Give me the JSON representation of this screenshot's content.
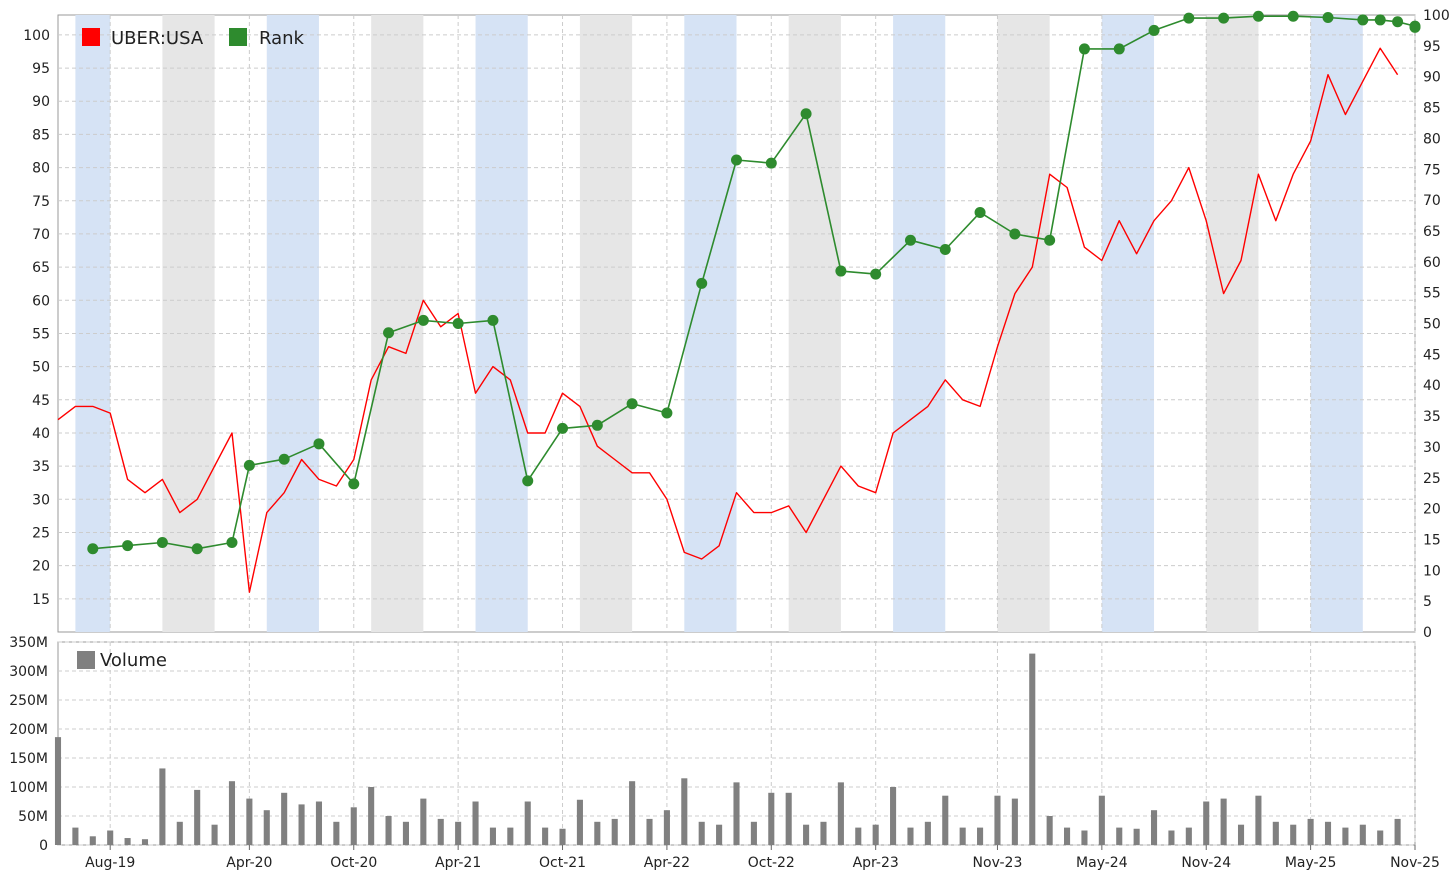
{
  "chart_data": [
    {
      "type": "line",
      "panel": "price",
      "legend": [
        {
          "name": "UBER:USA",
          "color": "#ff0000"
        },
        {
          "name": "Rank",
          "color": "#2e8b2e"
        }
      ],
      "x_tick_labels": [
        "Aug-19",
        "Apr-20",
        "Oct-20",
        "Apr-21",
        "Oct-21",
        "Apr-22",
        "Oct-22",
        "Apr-23",
        "Nov-23",
        "May-24",
        "Nov-24",
        "May-25",
        "Nov-25"
      ],
      "x_range": [
        "2019-05",
        "2025-11"
      ],
      "y_left_range": [
        10,
        103
      ],
      "y_left_ticks": [
        15,
        20,
        25,
        30,
        35,
        40,
        45,
        50,
        55,
        60,
        65,
        70,
        75,
        80,
        85,
        90,
        95,
        100
      ],
      "y_right_range": [
        0,
        100
      ],
      "y_right_ticks": [
        0,
        5,
        10,
        15,
        20,
        25,
        30,
        35,
        40,
        45,
        50,
        55,
        60,
        65,
        70,
        75,
        80,
        85,
        90,
        95,
        100
      ],
      "grid": true,
      "legend_position": "top-left",
      "bands": [
        {
          "start": "2019-06",
          "end": "2019-08",
          "color": "#d6e3f5"
        },
        {
          "start": "2019-11",
          "end": "2020-02",
          "color": "#e6e6e6"
        },
        {
          "start": "2020-05",
          "end": "2020-08",
          "color": "#d6e3f5"
        },
        {
          "start": "2020-11",
          "end": "2021-02",
          "color": "#e6e6e6"
        },
        {
          "start": "2021-05",
          "end": "2021-08",
          "color": "#d6e3f5"
        },
        {
          "start": "2021-11",
          "end": "2022-02",
          "color": "#e6e6e6"
        },
        {
          "start": "2022-05",
          "end": "2022-08",
          "color": "#d6e3f5"
        },
        {
          "start": "2022-11",
          "end": "2023-02",
          "color": "#e6e6e6"
        },
        {
          "start": "2023-05",
          "end": "2023-08",
          "color": "#d6e3f5"
        },
        {
          "start": "2023-11",
          "end": "2024-02",
          "color": "#e6e6e6"
        },
        {
          "start": "2024-05",
          "end": "2024-08",
          "color": "#d6e3f5"
        },
        {
          "start": "2024-11",
          "end": "2025-02",
          "color": "#e6e6e6"
        },
        {
          "start": "2025-05",
          "end": "2025-08",
          "color": "#d6e3f5"
        }
      ],
      "series": [
        {
          "name": "UBER:USA",
          "color": "#ff0000",
          "axis": "left",
          "points": [
            [
              "2019-05",
              42
            ],
            [
              "2019-06",
              44
            ],
            [
              "2019-07",
              44
            ],
            [
              "2019-08",
              43
            ],
            [
              "2019-09",
              33
            ],
            [
              "2019-10",
              31
            ],
            [
              "2019-11",
              33
            ],
            [
              "2019-12",
              28
            ],
            [
              "2020-01",
              30
            ],
            [
              "2020-02",
              35
            ],
            [
              "2020-03",
              40
            ],
            [
              "2020-04",
              16
            ],
            [
              "2020-05",
              28
            ],
            [
              "2020-06",
              31
            ],
            [
              "2020-07",
              36
            ],
            [
              "2020-08",
              33
            ],
            [
              "2020-09",
              32
            ],
            [
              "2020-10",
              36
            ],
            [
              "2020-11",
              48
            ],
            [
              "2020-12",
              53
            ],
            [
              "2021-01",
              52
            ],
            [
              "2021-02",
              60
            ],
            [
              "2021-03",
              56
            ],
            [
              "2021-04",
              58
            ],
            [
              "2021-05",
              46
            ],
            [
              "2021-06",
              50
            ],
            [
              "2021-07",
              48
            ],
            [
              "2021-08",
              40
            ],
            [
              "2021-09",
              40
            ],
            [
              "2021-10",
              46
            ],
            [
              "2021-11",
              44
            ],
            [
              "2021-12",
              38
            ],
            [
              "2022-01",
              36
            ],
            [
              "2022-02",
              34
            ],
            [
              "2022-03",
              34
            ],
            [
              "2022-04",
              30
            ],
            [
              "2022-05",
              22
            ],
            [
              "2022-06",
              21
            ],
            [
              "2022-07",
              23
            ],
            [
              "2022-08",
              31
            ],
            [
              "2022-09",
              28
            ],
            [
              "2022-10",
              28
            ],
            [
              "2022-11",
              29
            ],
            [
              "2022-12",
              25
            ],
            [
              "2023-01",
              30
            ],
            [
              "2023-02",
              35
            ],
            [
              "2023-03",
              32
            ],
            [
              "2023-04",
              31
            ],
            [
              "2023-05",
              40
            ],
            [
              "2023-06",
              42
            ],
            [
              "2023-07",
              44
            ],
            [
              "2023-08",
              48
            ],
            [
              "2023-09",
              45
            ],
            [
              "2023-10",
              44
            ],
            [
              "2023-11",
              53
            ],
            [
              "2023-12",
              61
            ],
            [
              "2024-01",
              65
            ],
            [
              "2024-02",
              79
            ],
            [
              "2024-03",
              77
            ],
            [
              "2024-04",
              68
            ],
            [
              "2024-05",
              66
            ],
            [
              "2024-06",
              72
            ],
            [
              "2024-07",
              67
            ],
            [
              "2024-08",
              72
            ],
            [
              "2024-09",
              75
            ],
            [
              "2024-10",
              80
            ],
            [
              "2024-11",
              72
            ],
            [
              "2024-12",
              61
            ],
            [
              "2025-01",
              66
            ],
            [
              "2025-02",
              79
            ],
            [
              "2025-03",
              72
            ],
            [
              "2025-04",
              79
            ],
            [
              "2025-05",
              84
            ],
            [
              "2025-06",
              94
            ],
            [
              "2025-07",
              88
            ],
            [
              "2025-08",
              93
            ],
            [
              "2025-09",
              98
            ],
            [
              "2025-10",
              94
            ]
          ]
        },
        {
          "name": "Rank",
          "color": "#2e8b2e",
          "axis": "right",
          "markers": true,
          "points": [
            [
              "2019-07",
              13.5
            ],
            [
              "2019-09",
              14
            ],
            [
              "2019-11",
              14.5
            ],
            [
              "2020-01",
              13.5
            ],
            [
              "2020-03",
              14.5
            ],
            [
              "2020-04",
              27
            ],
            [
              "2020-06",
              28
            ],
            [
              "2020-08",
              30.5
            ],
            [
              "2020-10",
              24
            ],
            [
              "2020-12",
              48.5
            ],
            [
              "2021-02",
              50.5
            ],
            [
              "2021-04",
              50
            ],
            [
              "2021-06",
              50.5
            ],
            [
              "2021-08",
              24.5
            ],
            [
              "2021-10",
              33
            ],
            [
              "2021-12",
              33.5
            ],
            [
              "2022-02",
              37
            ],
            [
              "2022-04",
              35.5
            ],
            [
              "2022-06",
              56.5
            ],
            [
              "2022-08",
              76.5
            ],
            [
              "2022-10",
              76
            ],
            [
              "2022-12",
              84
            ],
            [
              "2023-02",
              58.5
            ],
            [
              "2023-04",
              58
            ],
            [
              "2023-06",
              63.5
            ],
            [
              "2023-08",
              62
            ],
            [
              "2023-10",
              68
            ],
            [
              "2023-12",
              64.5
            ],
            [
              "2024-02",
              63.5
            ],
            [
              "2024-04",
              94.5
            ],
            [
              "2024-06",
              94.5
            ],
            [
              "2024-08",
              97.5
            ],
            [
              "2024-10",
              99.5
            ],
            [
              "2024-12",
              99.5
            ],
            [
              "2025-02",
              99.8
            ],
            [
              "2025-04",
              99.8
            ],
            [
              "2025-06",
              99.6
            ],
            [
              "2025-08",
              99.2
            ],
            [
              "2025-09",
              99.2
            ],
            [
              "2025-10",
              98.9
            ],
            [
              "2025-11",
              98.2
            ],
            [
              "2025-11",
              98
            ]
          ]
        }
      ]
    },
    {
      "type": "bar",
      "panel": "volume",
      "legend": [
        {
          "name": "Volume",
          "color": "#808080"
        }
      ],
      "y_range": [
        0,
        350000000
      ],
      "y_tick_labels": [
        "0",
        "50M",
        "100M",
        "150M",
        "200M",
        "250M",
        "300M",
        "350M"
      ],
      "grid": true,
      "legend_position": "top-left",
      "series": [
        {
          "name": "Volume",
          "color": "#808080",
          "points": [
            [
              "2019-05",
              186000000
            ],
            [
              "2019-06",
              30000000
            ],
            [
              "2019-07",
              15000000
            ],
            [
              "2019-08",
              25000000
            ],
            [
              "2019-09",
              12000000
            ],
            [
              "2019-10",
              10000000
            ],
            [
              "2019-11",
              132000000
            ],
            [
              "2019-12",
              40000000
            ],
            [
              "2020-01",
              95000000
            ],
            [
              "2020-02",
              35000000
            ],
            [
              "2020-03",
              110000000
            ],
            [
              "2020-04",
              80000000
            ],
            [
              "2020-05",
              60000000
            ],
            [
              "2020-06",
              90000000
            ],
            [
              "2020-07",
              70000000
            ],
            [
              "2020-08",
              75000000
            ],
            [
              "2020-09",
              40000000
            ],
            [
              "2020-10",
              65000000
            ],
            [
              "2020-11",
              100000000
            ],
            [
              "2020-12",
              50000000
            ],
            [
              "2021-01",
              40000000
            ],
            [
              "2021-02",
              80000000
            ],
            [
              "2021-03",
              45000000
            ],
            [
              "2021-04",
              40000000
            ],
            [
              "2021-05",
              75000000
            ],
            [
              "2021-06",
              30000000
            ],
            [
              "2021-07",
              30000000
            ],
            [
              "2021-08",
              75000000
            ],
            [
              "2021-09",
              30000000
            ],
            [
              "2021-10",
              28000000
            ],
            [
              "2021-11",
              78000000
            ],
            [
              "2021-12",
              40000000
            ],
            [
              "2022-01",
              45000000
            ],
            [
              "2022-02",
              110000000
            ],
            [
              "2022-03",
              45000000
            ],
            [
              "2022-04",
              60000000
            ],
            [
              "2022-05",
              115000000
            ],
            [
              "2022-06",
              40000000
            ],
            [
              "2022-07",
              35000000
            ],
            [
              "2022-08",
              108000000
            ],
            [
              "2022-09",
              40000000
            ],
            [
              "2022-10",
              90000000
            ],
            [
              "2022-11",
              90000000
            ],
            [
              "2022-12",
              35000000
            ],
            [
              "2023-01",
              40000000
            ],
            [
              "2023-02",
              108000000
            ],
            [
              "2023-03",
              30000000
            ],
            [
              "2023-04",
              35000000
            ],
            [
              "2023-05",
              100000000
            ],
            [
              "2023-06",
              30000000
            ],
            [
              "2023-07",
              40000000
            ],
            [
              "2023-08",
              85000000
            ],
            [
              "2023-09",
              30000000
            ],
            [
              "2023-10",
              30000000
            ],
            [
              "2023-11",
              85000000
            ],
            [
              "2023-12",
              80000000
            ],
            [
              "2024-01",
              330000000
            ],
            [
              "2024-02",
              50000000
            ],
            [
              "2024-03",
              30000000
            ],
            [
              "2024-04",
              25000000
            ],
            [
              "2024-05",
              85000000
            ],
            [
              "2024-06",
              30000000
            ],
            [
              "2024-07",
              28000000
            ],
            [
              "2024-08",
              60000000
            ],
            [
              "2024-09",
              25000000
            ],
            [
              "2024-10",
              30000000
            ],
            [
              "2024-11",
              75000000
            ],
            [
              "2024-12",
              80000000
            ],
            [
              "2025-01",
              35000000
            ],
            [
              "2025-02",
              85000000
            ],
            [
              "2025-03",
              40000000
            ],
            [
              "2025-04",
              35000000
            ],
            [
              "2025-05",
              45000000
            ],
            [
              "2025-06",
              40000000
            ],
            [
              "2025-07",
              30000000
            ],
            [
              "2025-08",
              35000000
            ],
            [
              "2025-09",
              25000000
            ],
            [
              "2025-10",
              45000000
            ]
          ]
        }
      ]
    }
  ]
}
